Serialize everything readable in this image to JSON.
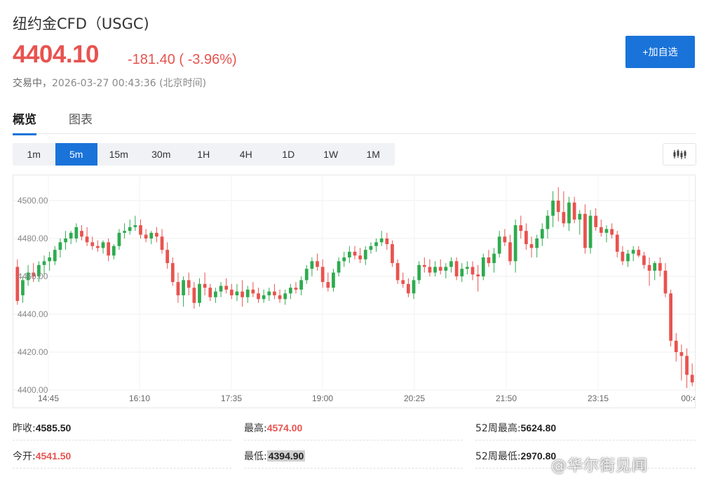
{
  "header": {
    "title": "纽约金CFD（USGC)",
    "price": "4404.10",
    "change": "-181.40 ( -3.96%)",
    "status_label": "交易中，",
    "timestamp": "2026-03-27 00:43:36 (北京时间)",
    "add_button": "+加自选"
  },
  "tabs": [
    {
      "label": "概览",
      "active": true
    },
    {
      "label": "图表",
      "active": false
    }
  ],
  "periods": [
    "1m",
    "5m",
    "15m",
    "30m",
    "1H",
    "4H",
    "1D",
    "1W",
    "1M"
  ],
  "active_period": "5m",
  "chart_type_icon": "candlestick-icon",
  "colors": {
    "up": "#2eab4f",
    "down": "#e8534f",
    "accent": "#1a73d9"
  },
  "chart_data": {
    "type": "candlestick",
    "ylim": [
      4400,
      4510
    ],
    "y_ticks": [
      "4500.00",
      "4480.00",
      "4460.00",
      "4440.00",
      "4420.00",
      "4400.00"
    ],
    "x_ticks": [
      "14:45",
      "16:10",
      "17:35",
      "19:00",
      "20:25",
      "21:50",
      "23:15",
      "00:4"
    ],
    "candles": [
      [
        4465,
        4469,
        4445,
        4447
      ],
      [
        4450,
        4460,
        4446,
        4458
      ],
      [
        4458,
        4466,
        4455,
        4462
      ],
      [
        4462,
        4467,
        4457,
        4460
      ],
      [
        4460,
        4468,
        4457,
        4466
      ],
      [
        4466,
        4471,
        4460,
        4468
      ],
      [
        4468,
        4473,
        4463,
        4470
      ],
      [
        4468,
        4476,
        4466,
        4474
      ],
      [
        4474,
        4480,
        4470,
        4478
      ],
      [
        4478,
        4484,
        4474,
        4480
      ],
      [
        4480,
        4484,
        4477,
        4483
      ],
      [
        4480,
        4488,
        4478,
        4486
      ],
      [
        4484,
        4487,
        4479,
        4481
      ],
      [
        4481,
        4486,
        4476,
        4478
      ],
      [
        4478,
        4481,
        4474,
        4476
      ],
      [
        4476,
        4479,
        4473,
        4475
      ],
      [
        4475,
        4479,
        4472,
        4478
      ],
      [
        4478,
        4480,
        4468,
        4471
      ],
      [
        4471,
        4477,
        4469,
        4476
      ],
      [
        4476,
        4485,
        4474,
        4483
      ],
      [
        4483,
        4488,
        4480,
        4484
      ],
      [
        4484,
        4490,
        4482,
        4486
      ],
      [
        4486,
        4492,
        4484,
        4487
      ],
      [
        4487,
        4490,
        4480,
        4482
      ],
      [
        4482,
        4485,
        4478,
        4480
      ],
      [
        4480,
        4484,
        4477,
        4483
      ],
      [
        4483,
        4486,
        4478,
        4481
      ],
      [
        4481,
        4485,
        4472,
        4474
      ],
      [
        4474,
        4478,
        4464,
        4467
      ],
      [
        4467,
        4470,
        4455,
        4457
      ],
      [
        4457,
        4462,
        4446,
        4450
      ],
      [
        4450,
        4460,
        4444,
        4458
      ],
      [
        4458,
        4462,
        4450,
        4454
      ],
      [
        4454,
        4457,
        4443,
        4446
      ],
      [
        4446,
        4459,
        4444,
        4456
      ],
      [
        4456,
        4462,
        4450,
        4454
      ],
      [
        4454,
        4456,
        4447,
        4449
      ],
      [
        4449,
        4454,
        4446,
        4452
      ],
      [
        4452,
        4457,
        4449,
        4455
      ],
      [
        4455,
        4459,
        4451,
        4453
      ],
      [
        4453,
        4456,
        4448,
        4450
      ],
      [
        4450,
        4456,
        4447,
        4452
      ],
      [
        4452,
        4458,
        4444,
        4449
      ],
      [
        4449,
        4455,
        4446,
        4453
      ],
      [
        4453,
        4457,
        4449,
        4451
      ],
      [
        4451,
        4454,
        4446,
        4448
      ],
      [
        4448,
        4453,
        4446,
        4450
      ],
      [
        4450,
        4454,
        4447,
        4452
      ],
      [
        4452,
        4456,
        4448,
        4450
      ],
      [
        4450,
        4453,
        4446,
        4448
      ],
      [
        4448,
        4453,
        4445,
        4451
      ],
      [
        4451,
        4456,
        4448,
        4454
      ],
      [
        4454,
        4457,
        4451,
        4453
      ],
      [
        4453,
        4460,
        4450,
        4458
      ],
      [
        4458,
        4466,
        4456,
        4464
      ],
      [
        4464,
        4470,
        4460,
        4468
      ],
      [
        4468,
        4472,
        4463,
        4465
      ],
      [
        4465,
        4469,
        4454,
        4457
      ],
      [
        4457,
        4462,
        4452,
        4454
      ],
      [
        4454,
        4464,
        4452,
        4462
      ],
      [
        4462,
        4470,
        4460,
        4468
      ],
      [
        4468,
        4473,
        4465,
        4470
      ],
      [
        4470,
        4476,
        4467,
        4473
      ],
      [
        4473,
        4476,
        4469,
        4471
      ],
      [
        4471,
        4475,
        4467,
        4469
      ],
      [
        4469,
        4476,
        4466,
        4474
      ],
      [
        4474,
        4478,
        4472,
        4476
      ],
      [
        4476,
        4480,
        4473,
        4478
      ],
      [
        4478,
        4484,
        4476,
        4480
      ],
      [
        4480,
        4483,
        4474,
        4477
      ],
      [
        4477,
        4479,
        4465,
        4467
      ],
      [
        4467,
        4469,
        4456,
        4458
      ],
      [
        4458,
        4462,
        4454,
        4456
      ],
      [
        4456,
        4459,
        4449,
        4451
      ],
      [
        4451,
        4460,
        4448,
        4458
      ],
      [
        4458,
        4468,
        4456,
        4466
      ],
      [
        4466,
        4470,
        4462,
        4465
      ],
      [
        4465,
        4469,
        4460,
        4462
      ],
      [
        4462,
        4468,
        4460,
        4465
      ],
      [
        4465,
        4469,
        4461,
        4463
      ],
      [
        4463,
        4467,
        4459,
        4465
      ],
      [
        4465,
        4470,
        4462,
        4468
      ],
      [
        4468,
        4470,
        4458,
        4460
      ],
      [
        4460,
        4467,
        4457,
        4464
      ],
      [
        4464,
        4468,
        4461,
        4465
      ],
      [
        4465,
        4468,
        4458,
        4461
      ],
      [
        4461,
        4466,
        4452,
        4460
      ],
      [
        4460,
        4472,
        4458,
        4470
      ],
      [
        4470,
        4474,
        4465,
        4467
      ],
      [
        4467,
        4475,
        4462,
        4472
      ],
      [
        4472,
        4484,
        4470,
        4481
      ],
      [
        4481,
        4485,
        4476,
        4478
      ],
      [
        4478,
        4482,
        4466,
        4468
      ],
      [
        4468,
        4490,
        4462,
        4487
      ],
      [
        4487,
        4492,
        4480,
        4484
      ],
      [
        4484,
        4488,
        4474,
        4477
      ],
      [
        4477,
        4481,
        4470,
        4475
      ],
      [
        4475,
        4482,
        4470,
        4480
      ],
      [
        4480,
        4488,
        4476,
        4485
      ],
      [
        4485,
        4495,
        4480,
        4492
      ],
      [
        4492,
        4505,
        4486,
        4500
      ],
      [
        4500,
        4507,
        4489,
        4494
      ],
      [
        4494,
        4505,
        4486,
        4488
      ],
      [
        4488,
        4502,
        4484,
        4499
      ],
      [
        4499,
        4502,
        4488,
        4490
      ],
      [
        4490,
        4495,
        4482,
        4493
      ],
      [
        4493,
        4498,
        4472,
        4475
      ],
      [
        4475,
        4495,
        4472,
        4492
      ],
      [
        4492,
        4496,
        4484,
        4486
      ],
      [
        4486,
        4490,
        4481,
        4483
      ],
      [
        4483,
        4487,
        4478,
        4485
      ],
      [
        4485,
        4488,
        4480,
        4482
      ],
      [
        4482,
        4484,
        4470,
        4473
      ],
      [
        4473,
        4476,
        4466,
        4468
      ],
      [
        4468,
        4474,
        4465,
        4472
      ],
      [
        4472,
        4476,
        4468,
        4474
      ],
      [
        4474,
        4476,
        4470,
        4471
      ],
      [
        4471,
        4473,
        4464,
        4466
      ],
      [
        4466,
        4470,
        4455,
        4463
      ],
      [
        4463,
        4468,
        4458,
        4467
      ],
      [
        4467,
        4470,
        4460,
        4463
      ],
      [
        4463,
        4467,
        4449,
        4451
      ],
      [
        4451,
        4453,
        4423,
        4426
      ],
      [
        4426,
        4430,
        4415,
        4420
      ],
      [
        4420,
        4424,
        4405,
        4418
      ],
      [
        4418,
        4422,
        4401,
        4408
      ],
      [
        4408,
        4414,
        4402,
        4404
      ]
    ]
  },
  "stats": [
    {
      "label": "昨收:",
      "value": "4585.50",
      "color": "normal"
    },
    {
      "label": "最高:",
      "value": "4574.00",
      "color": "red"
    },
    {
      "label": "52周最高:",
      "value": "5624.80",
      "color": "normal"
    },
    {
      "label": "今开:",
      "value": "4541.50",
      "color": "red"
    },
    {
      "label": "最低:",
      "value": "4394.90",
      "color": "highlight"
    },
    {
      "label": "52周最低:",
      "value": "2970.80",
      "color": "normal"
    }
  ],
  "watermark": "@华尔街见闻"
}
